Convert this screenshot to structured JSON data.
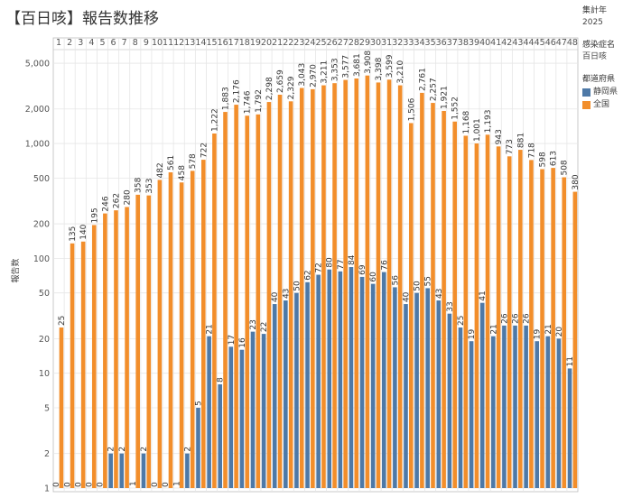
{
  "header": {
    "title": "【百日咳】報告数推移"
  },
  "filters": {
    "year_label": "集計年",
    "year_value": "2025",
    "disease_label": "感染症名",
    "disease_value": "百日咳",
    "pref_label": "都道府県"
  },
  "colors": {
    "shizuoka": "#4e79a7",
    "national": "#f28e2b",
    "grid": "#e6e6e6"
  },
  "chart_data": {
    "type": "bar",
    "title": "【百日咳】報告数推移",
    "xlabel": "",
    "ylabel": "報告数",
    "yscale": "log",
    "ylim": [
      1,
      6000
    ],
    "yticks": [
      1,
      2,
      5,
      10,
      20,
      50,
      100,
      200,
      500,
      1000,
      2000,
      5000
    ],
    "ytick_labels": [
      "1",
      "2",
      "5",
      "10",
      "20",
      "50",
      "100",
      "200",
      "500",
      "1,000",
      "2,000",
      "5,000"
    ],
    "categories": [
      "1",
      "2",
      "3",
      "4",
      "5",
      "6",
      "7",
      "8",
      "9",
      "10",
      "11",
      "12",
      "13",
      "14",
      "15",
      "16",
      "17",
      "18",
      "19",
      "20",
      "21",
      "22",
      "23",
      "24",
      "25",
      "26",
      "27",
      "28",
      "29",
      "30",
      "31",
      "32",
      "33",
      "34",
      "35",
      "36",
      "37",
      "38",
      "39",
      "40",
      "41",
      "42",
      "43",
      "44",
      "45",
      "46",
      "47",
      "48"
    ],
    "legend_position": "right",
    "series": [
      {
        "name": "静岡県",
        "color": "#4e79a7",
        "values": [
          0,
          0,
          0,
          0,
          0,
          2,
          2,
          1,
          2,
          0,
          0,
          1,
          2,
          5,
          21,
          8,
          17,
          16,
          23,
          22,
          40,
          43,
          50,
          62,
          72,
          80,
          77,
          84,
          69,
          60,
          76,
          56,
          40,
          50,
          55,
          43,
          33,
          25,
          19,
          41,
          21,
          26,
          26,
          26,
          19,
          21,
          20,
          11
        ],
        "labels": [
          "0",
          "0",
          "0",
          "0",
          "0",
          "2",
          "2",
          "1",
          "2",
          "0",
          "0",
          "1",
          "2",
          "5",
          "21",
          "8",
          "17",
          "16",
          "23",
          "22",
          "40",
          "43",
          "50",
          "62",
          "72",
          "80",
          "77",
          "84",
          "69",
          "60",
          "76",
          "56",
          "40",
          "50",
          "55",
          "43",
          "33",
          "25",
          "19",
          "41",
          "21",
          "26",
          "26",
          "26",
          "19",
          "21",
          "20",
          "11"
        ]
      },
      {
        "name": "全国",
        "color": "#f28e2b",
        "values": [
          25,
          135,
          140,
          195,
          246,
          262,
          280,
          358,
          353,
          482,
          561,
          458,
          578,
          722,
          1222,
          1883,
          2176,
          1746,
          1792,
          2298,
          2659,
          2329,
          3043,
          2970,
          3211,
          3353,
          3577,
          3681,
          3908,
          3398,
          3599,
          3210,
          1506,
          2761,
          2257,
          1921,
          1552,
          1168,
          1001,
          1193,
          943,
          773,
          881,
          718,
          598,
          613,
          508,
          380
        ],
        "labels": [
          "25",
          "135",
          "140",
          "195",
          "246",
          "262",
          "280",
          "358",
          "353",
          "482",
          "561",
          "458",
          "578",
          "722",
          "1,222",
          "1,883",
          "2,176",
          "1,746",
          "1,792",
          "2,298",
          "2,659",
          "2,329",
          "3,043",
          "2,970",
          "3,211",
          "3,353",
          "3,577",
          "3,681",
          "3,908",
          "3,398",
          "3,599",
          "3,210",
          "1,506",
          "2,761",
          "2,257",
          "1,921",
          "1,552",
          "1,168",
          "1,001",
          "1,193",
          "943",
          "773",
          "881",
          "718",
          "598",
          "613",
          "508",
          "380"
        ]
      }
    ]
  }
}
